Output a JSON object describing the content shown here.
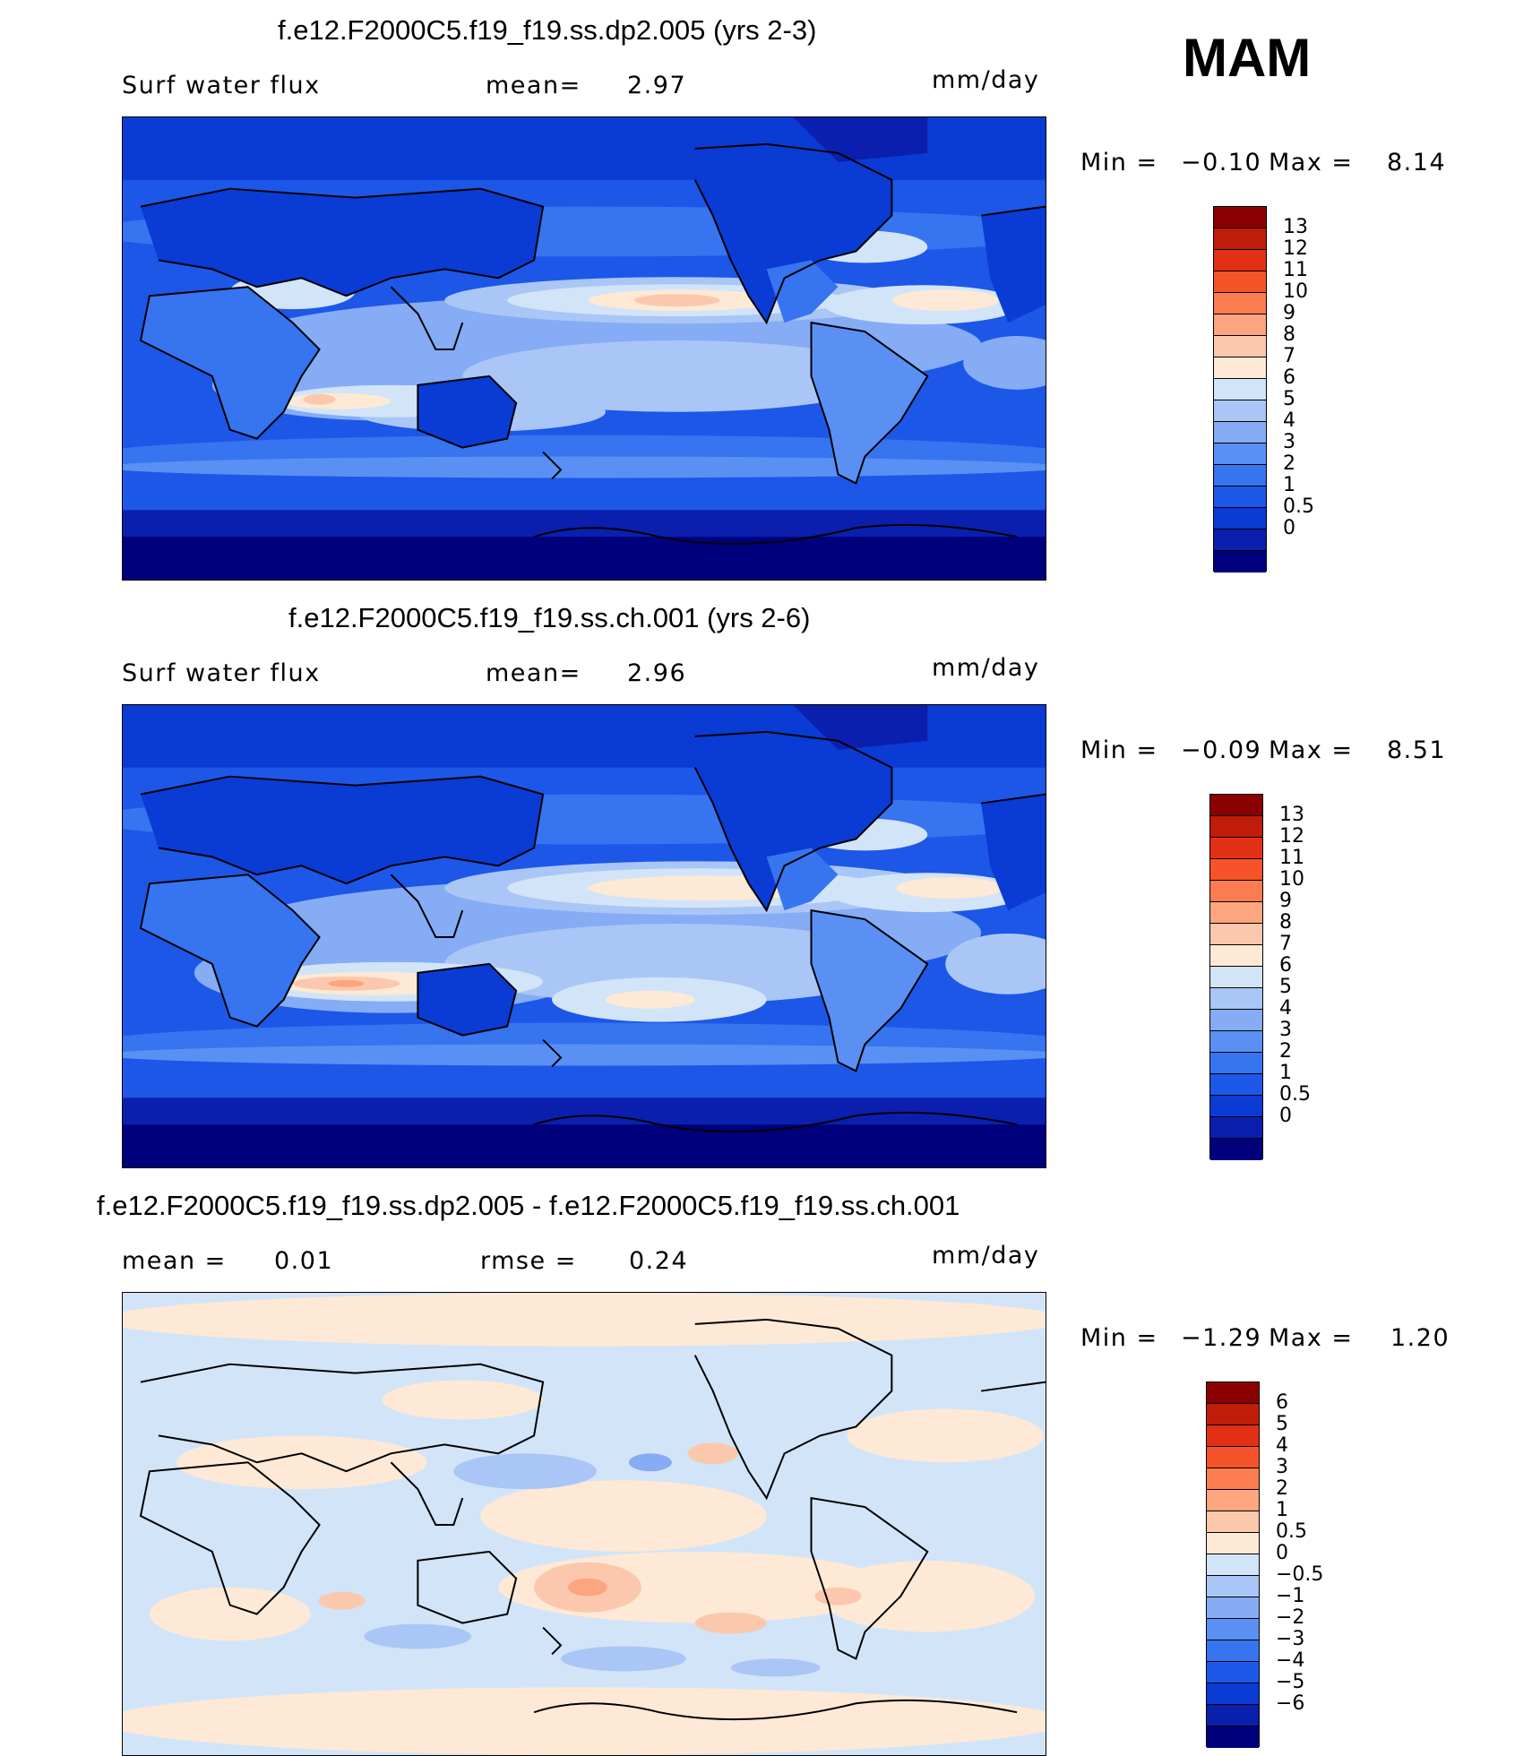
{
  "season": "MAM",
  "colors": {
    "abs": [
      "#00007d",
      "#0a1fae",
      "#0a3bd4",
      "#1d57e8",
      "#3674f0",
      "#5a90f4",
      "#85acf5",
      "#aac6f6",
      "#d2e4f8",
      "#fde9d6",
      "#fcc8ad",
      "#fca57e",
      "#fb7d4f",
      "#f6532a",
      "#e23014",
      "#bf1c0a",
      "#8b0000"
    ],
    "diff": [
      "#00007d",
      "#0a1fae",
      "#0a3bd4",
      "#1d57e8",
      "#3674f0",
      "#5a90f4",
      "#85acf5",
      "#aac6f6",
      "#d2e4f8",
      "#fde9d6",
      "#fcc8ad",
      "#fca57e",
      "#fb7d4f",
      "#f6532a",
      "#e23014",
      "#bf1c0a",
      "#8b0000"
    ]
  },
  "panels": [
    {
      "title": "f.e12.F2000C5.f19_f19.ss.dp2.005 (yrs 2-3)",
      "left_label": "Surf water flux",
      "mid_label": "mean=",
      "mid_value": "2.97",
      "units": "mm/day",
      "min_label": "Min =",
      "min_value": "−0.10",
      "max_label": "Max =",
      "max_value": "8.14",
      "colorbar_ticks": [
        "13",
        "12",
        "11",
        "10",
        "9",
        "8",
        "7",
        "6",
        "5",
        "4",
        "3",
        "2",
        "1",
        "0.5",
        "0"
      ]
    },
    {
      "title": "f.e12.F2000C5.f19_f19.ss.ch.001 (yrs 2-6)",
      "left_label": "Surf water flux",
      "mid_label": "mean=",
      "mid_value": "2.96",
      "units": "mm/day",
      "min_label": "Min =",
      "min_value": "−0.09",
      "max_label": "Max =",
      "max_value": "8.51",
      "colorbar_ticks": [
        "13",
        "12",
        "11",
        "10",
        "9",
        "8",
        "7",
        "6",
        "5",
        "4",
        "3",
        "2",
        "1",
        "0.5",
        "0"
      ]
    },
    {
      "title": "f.e12.F2000C5.f19_f19.ss.dp2.005 - f.e12.F2000C5.f19_f19.ss.ch.001",
      "left_label": "mean =",
      "left_value": "0.01",
      "mid_label": "rmse =",
      "mid_value": "0.24",
      "units": "mm/day",
      "min_label": "Min =",
      "min_value": "−1.29",
      "max_label": "Max =",
      "max_value": "1.20",
      "colorbar_ticks": [
        "6",
        "5",
        "4",
        "3",
        "2",
        "1",
        "0.5",
        "0",
        "−0.5",
        "−1",
        "−2",
        "−3",
        "−4",
        "−5",
        "−6"
      ]
    }
  ]
}
